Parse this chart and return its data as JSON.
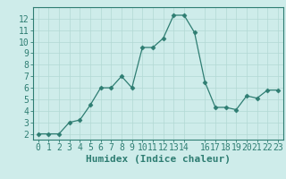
{
  "x": [
    0,
    1,
    2,
    3,
    4,
    5,
    6,
    7,
    8,
    9,
    10,
    11,
    12,
    13,
    14,
    15,
    16,
    17,
    18,
    19,
    20,
    21,
    22,
    23
  ],
  "y": [
    2,
    2,
    2,
    3,
    3.2,
    4.5,
    6,
    6,
    7,
    6,
    9.5,
    9.5,
    10.3,
    12.3,
    12.3,
    10.8,
    6.5,
    4.3,
    4.3,
    4.1,
    5.3,
    5.1,
    5.8,
    5.8
  ],
  "xlabel": "Humidex (Indice chaleur)",
  "xlim": [
    -0.5,
    23.5
  ],
  "ylim": [
    1.5,
    13
  ],
  "xticks": [
    0,
    1,
    2,
    3,
    4,
    5,
    6,
    7,
    8,
    9,
    10,
    11,
    12,
    13,
    14,
    16,
    17,
    18,
    19,
    20,
    21,
    22,
    23
  ],
  "yticks": [
    2,
    3,
    4,
    5,
    6,
    7,
    8,
    9,
    10,
    11,
    12
  ],
  "line_color": "#2e7d72",
  "marker": "D",
  "marker_size": 2.5,
  "bg_color": "#ceecea",
  "grid_color": "#b2d8d4",
  "xlabel_fontsize": 8,
  "tick_fontsize": 7
}
